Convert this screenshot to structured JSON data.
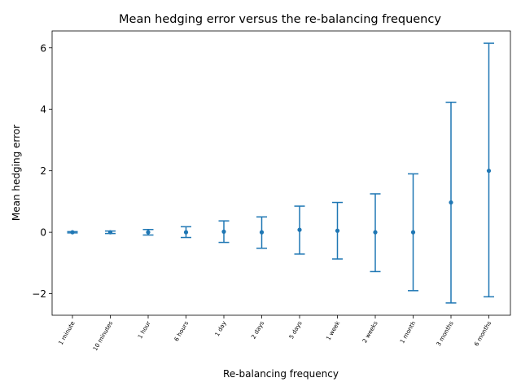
{
  "chart_data": {
    "type": "errorbar",
    "title": "Mean hedging error versus the re-balancing frequency",
    "xlabel": "Re-balancing frequency",
    "ylabel": "Mean hedging error",
    "categories": [
      "1 minute",
      "10 minutes",
      "1 hour",
      "6 hours",
      "1 day",
      "2 days",
      "5 days",
      "1 week",
      "2 weeks",
      "1 month",
      "3 months",
      "6 months"
    ],
    "y_ticks": [
      -2,
      0,
      2,
      4,
      6
    ],
    "ylim": [
      -2.7,
      6.55
    ],
    "series": [
      {
        "mean": [
          0.0,
          0.0,
          0.0,
          0.0,
          0.02,
          0.0,
          0.08,
          0.05,
          0.0,
          0.0,
          0.97,
          2.0
        ],
        "lower": [
          -0.02,
          -0.04,
          -0.09,
          -0.17,
          -0.33,
          -0.52,
          -0.71,
          -0.87,
          -1.28,
          -1.9,
          -2.3,
          -2.1
        ],
        "upper": [
          0.02,
          0.04,
          0.09,
          0.18,
          0.37,
          0.5,
          0.85,
          0.97,
          1.25,
          1.9,
          4.23,
          6.15
        ]
      }
    ],
    "color": "#1f77b4",
    "grid": false,
    "legend": "none"
  }
}
